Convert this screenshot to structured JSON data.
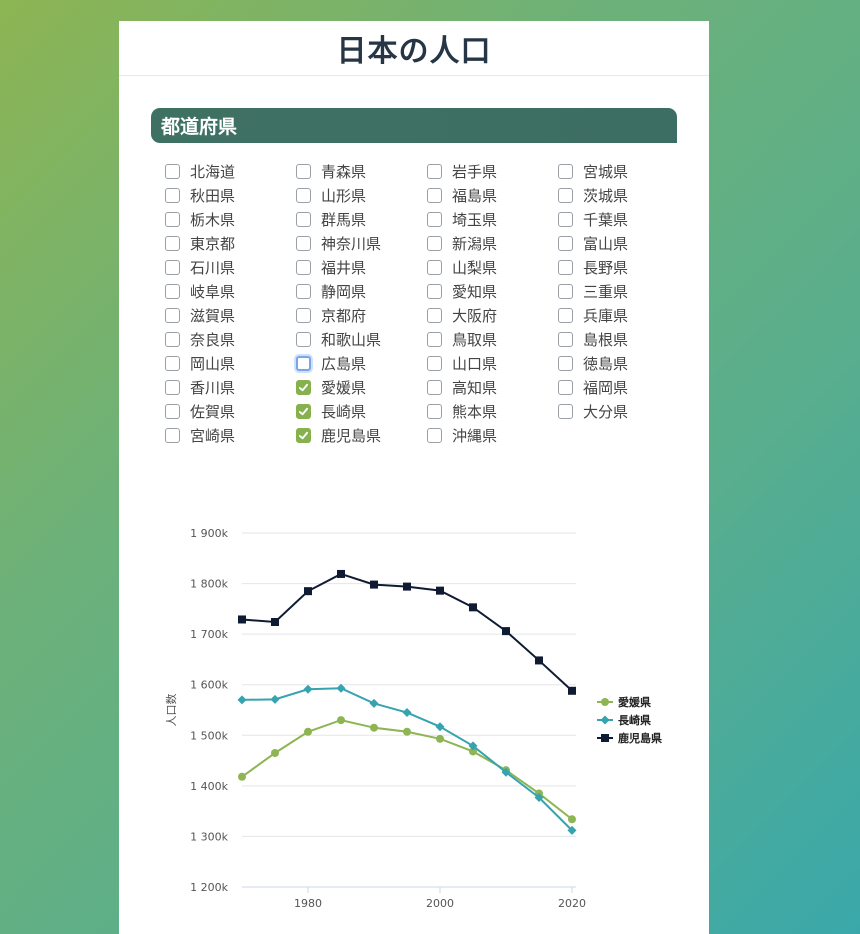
{
  "page": {
    "title": "日本の人口"
  },
  "section": {
    "title": "都道府県"
  },
  "prefectures": [
    {
      "name": "北海道",
      "checked": false
    },
    {
      "name": "青森県",
      "checked": false
    },
    {
      "name": "岩手県",
      "checked": false
    },
    {
      "name": "宮城県",
      "checked": false
    },
    {
      "name": "秋田県",
      "checked": false
    },
    {
      "name": "山形県",
      "checked": false
    },
    {
      "name": "福島県",
      "checked": false
    },
    {
      "name": "茨城県",
      "checked": false
    },
    {
      "name": "栃木県",
      "checked": false
    },
    {
      "name": "群馬県",
      "checked": false
    },
    {
      "name": "埼玉県",
      "checked": false
    },
    {
      "name": "千葉県",
      "checked": false
    },
    {
      "name": "東京都",
      "checked": false
    },
    {
      "name": "神奈川県",
      "checked": false
    },
    {
      "name": "新潟県",
      "checked": false
    },
    {
      "name": "富山県",
      "checked": false
    },
    {
      "name": "石川県",
      "checked": false
    },
    {
      "name": "福井県",
      "checked": false
    },
    {
      "name": "山梨県",
      "checked": false
    },
    {
      "name": "長野県",
      "checked": false
    },
    {
      "name": "岐阜県",
      "checked": false
    },
    {
      "name": "静岡県",
      "checked": false
    },
    {
      "name": "愛知県",
      "checked": false
    },
    {
      "name": "三重県",
      "checked": false
    },
    {
      "name": "滋賀県",
      "checked": false
    },
    {
      "name": "京都府",
      "checked": false
    },
    {
      "name": "大阪府",
      "checked": false
    },
    {
      "name": "兵庫県",
      "checked": false
    },
    {
      "name": "奈良県",
      "checked": false
    },
    {
      "name": "和歌山県",
      "checked": false
    },
    {
      "name": "鳥取県",
      "checked": false
    },
    {
      "name": "島根県",
      "checked": false
    },
    {
      "name": "岡山県",
      "checked": false
    },
    {
      "name": "広島県",
      "checked": false,
      "focused": true
    },
    {
      "name": "山口県",
      "checked": false
    },
    {
      "name": "徳島県",
      "checked": false
    },
    {
      "name": "香川県",
      "checked": false
    },
    {
      "name": "愛媛県",
      "checked": true
    },
    {
      "name": "高知県",
      "checked": false
    },
    {
      "name": "福岡県",
      "checked": false
    },
    {
      "name": "佐賀県",
      "checked": false
    },
    {
      "name": "長崎県",
      "checked": true
    },
    {
      "name": "熊本県",
      "checked": false
    },
    {
      "name": "大分県",
      "checked": false
    },
    {
      "name": "宮崎県",
      "checked": false
    },
    {
      "name": "鹿児島県",
      "checked": true
    },
    {
      "name": "沖縄県",
      "checked": false
    }
  ],
  "chart_data": {
    "type": "line",
    "title": "",
    "xlabel": "",
    "ylabel": "人口数",
    "x": [
      1970,
      1975,
      1980,
      1985,
      1990,
      1995,
      2000,
      2005,
      2010,
      2015,
      2020
    ],
    "xticks": [
      1980,
      2000,
      2020
    ],
    "xlim": [
      1970,
      2020
    ],
    "ylim": [
      1200000,
      1900000
    ],
    "yticks": [
      1200000,
      1300000,
      1400000,
      1500000,
      1600000,
      1700000,
      1800000,
      1900000
    ],
    "ytick_labels": [
      "1 200k",
      "1 300k",
      "1 400k",
      "1 500k",
      "1 600k",
      "1 700k",
      "1 800k",
      "1 900k"
    ],
    "grid": true,
    "legend": "right",
    "series": [
      {
        "name": "愛媛県",
        "color": "#8db553",
        "marker": "circle",
        "values": [
          1418000,
          1465000,
          1507000,
          1530000,
          1515000,
          1507000,
          1493000,
          1468000,
          1431000,
          1385000,
          1334000
        ]
      },
      {
        "name": "長崎県",
        "color": "#35a3b0",
        "marker": "diamond",
        "values": [
          1570000,
          1571000,
          1591000,
          1593000,
          1563000,
          1545000,
          1517000,
          1479000,
          1427000,
          1377000,
          1312000
        ]
      },
      {
        "name": "鹿児島県",
        "color": "#0f1b33",
        "marker": "square",
        "values": [
          1729000,
          1724000,
          1785000,
          1819000,
          1798000,
          1794000,
          1786000,
          1753000,
          1706000,
          1648000,
          1588000
        ]
      }
    ]
  }
}
